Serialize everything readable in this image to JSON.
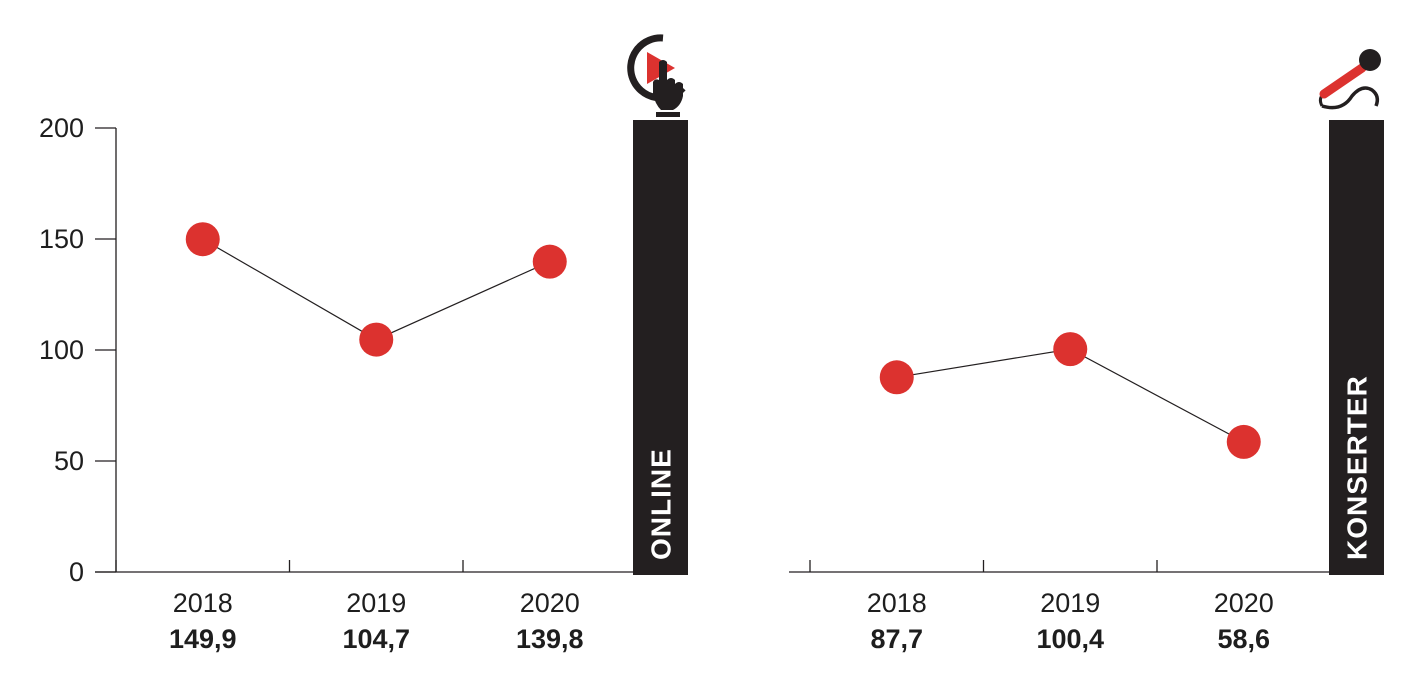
{
  "colors": {
    "marker": "#dc322f",
    "band": "#231f20",
    "axis": "#231f20",
    "line": "#231f20",
    "text": "#1e1e1e"
  },
  "chart_data": [
    {
      "type": "line",
      "category": "ONLINE",
      "icon": "play-button-hand-icon",
      "x": [
        "2018",
        "2019",
        "2020"
      ],
      "values": [
        149.9,
        104.7,
        139.8
      ],
      "value_labels": [
        "149,9",
        "104,7",
        "139,8"
      ],
      "ylim": [
        0,
        200
      ],
      "yticks": [
        "0",
        "50",
        "100",
        "150",
        "200"
      ],
      "show_y_axis": true,
      "grid": false
    },
    {
      "type": "line",
      "category": "KONSERTER",
      "icon": "microphone-icon",
      "x": [
        "2018",
        "2019",
        "2020"
      ],
      "values": [
        87.7,
        100.4,
        58.6
      ],
      "value_labels": [
        "87,7",
        "100,4",
        "58,6"
      ],
      "ylim": [
        0,
        200
      ],
      "yticks": [],
      "show_y_axis": false,
      "grid": false
    }
  ]
}
